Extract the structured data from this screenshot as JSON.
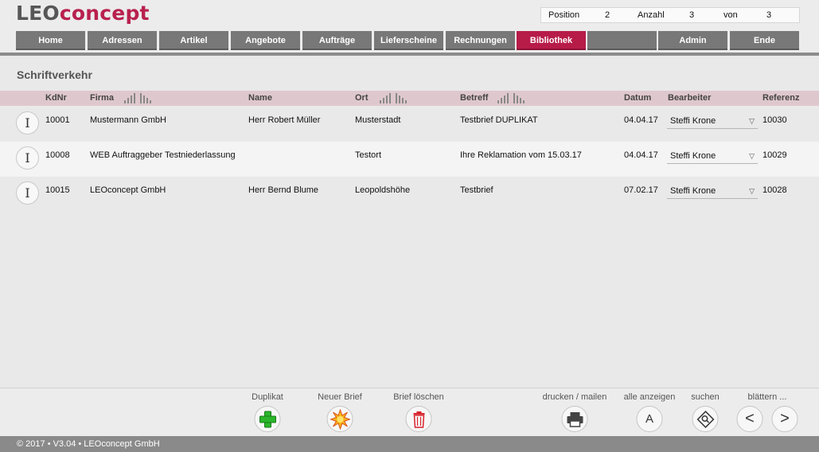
{
  "app": {
    "logo_part1": "LEO",
    "logo_part2": "concept",
    "brand_color": "#b8214e"
  },
  "position_box": {
    "position_label": "Position",
    "position_value": "2",
    "anzahl_label": "Anzahl",
    "anzahl_value": "3",
    "von_label": "von",
    "von_value": "3"
  },
  "nav": {
    "tabs": [
      "Home",
      "Adressen",
      "Artikel",
      "Angebote",
      "Aufträge",
      "Lieferscheine",
      "Rechnungen",
      "Bibliothek",
      "",
      "Admin",
      "Ende"
    ],
    "active": "Bibliothek"
  },
  "section": {
    "title": "Schriftverkehr"
  },
  "table": {
    "headers": {
      "kdnr": "KdNr",
      "firma": "Firma",
      "name": "Name",
      "ort": "Ort",
      "betreff": "Betreff",
      "datum": "Datum",
      "bearbeiter": "Bearbeiter",
      "referenz": "Referenz"
    },
    "rows": [
      {
        "kdnr": "10001",
        "firma": "Mustermann GmbH",
        "name": "Herr Robert Müller",
        "ort": "Musterstadt",
        "betreff": "Testbrief DUPLIKAT",
        "datum": "04.04.17",
        "bearbeiter": "Steffi Krone",
        "referenz": "10030"
      },
      {
        "kdnr": "10008",
        "firma": "WEB Auftraggeber Testniederlassung",
        "name": "",
        "ort": "Testort",
        "betreff": "Ihre Reklamation vom 15.03.17",
        "datum": "04.04.17",
        "bearbeiter": "Steffi Krone",
        "referenz": "10029"
      },
      {
        "kdnr": "10015",
        "firma": "LEOconcept GmbH",
        "name": "Herr Bernd  Blume",
        "ort": "Leopoldshöhe",
        "betreff": "Testbrief",
        "datum": "07.02.17",
        "bearbeiter": "Steffi Krone",
        "referenz": "10028"
      }
    ]
  },
  "footer_buttons": {
    "duplikat": "Duplikat",
    "neuer_brief": "Neuer Brief",
    "brief_loeschen": "Brief löschen",
    "drucken": "drucken / mailen",
    "alle_anzeigen": "alle anzeigen",
    "alle_anzeigen_glyph": "A",
    "suchen": "suchen",
    "blaettern": "blättern ...",
    "prev_glyph": "<",
    "next_glyph": ">"
  },
  "icons": {
    "duplikat": "green-plus-icon",
    "neuer_brief": "starburst-icon",
    "brief_loeschen": "trash-icon",
    "drucken": "printer-icon",
    "suchen": "magnifier-icon",
    "info": "info-i-icon"
  },
  "status": {
    "copyright": "© 2017 • V3.04 • LEOconcept GmbH"
  }
}
